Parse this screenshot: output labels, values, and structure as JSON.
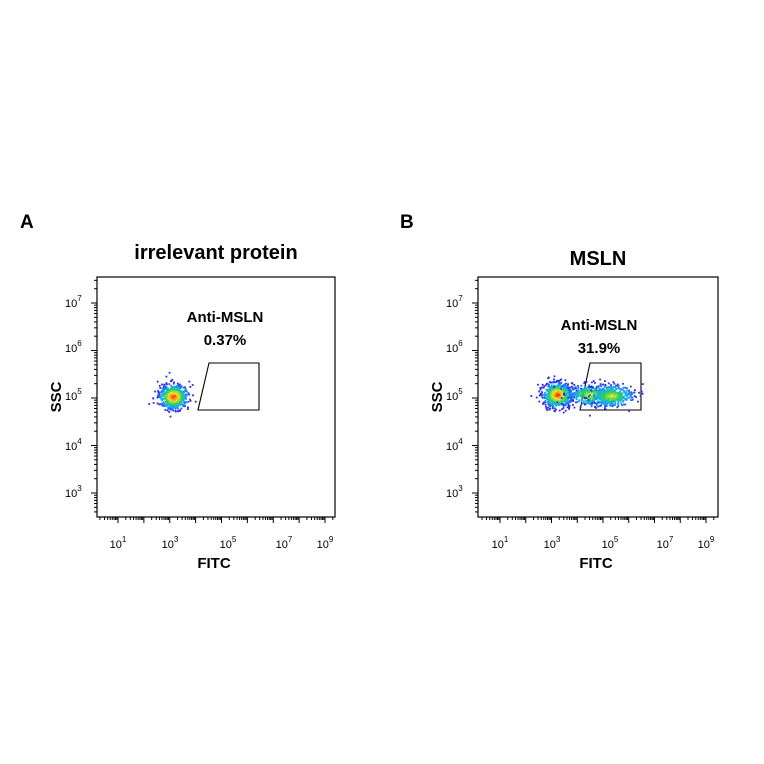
{
  "chart_data": [
    {
      "type": "scatter",
      "panel": "A",
      "title": "irrelevant protein",
      "xlabel": "FITC",
      "ylabel": "SSC",
      "x_scale": "log",
      "y_scale": "log",
      "x_ticks": [
        {
          "base": "10",
          "exp": "1",
          "value": 10
        },
        {
          "base": "10",
          "exp": "3",
          "value": 1000
        },
        {
          "base": "10",
          "exp": "5",
          "value": 100000
        },
        {
          "base": "10",
          "exp": "7",
          "value": 10000000
        },
        {
          "base": "10",
          "exp": "9",
          "value": 1000000000
        }
      ],
      "y_ticks": [
        {
          "base": "10",
          "exp": "3",
          "value": 1000
        },
        {
          "base": "10",
          "exp": "4",
          "value": 10000
        },
        {
          "base": "10",
          "exp": "5",
          "value": 100000
        },
        {
          "base": "10",
          "exp": "6",
          "value": 1000000
        },
        {
          "base": "10",
          "exp": "7",
          "value": 10000000
        }
      ],
      "gate": {
        "label": "Anti-MSLN",
        "percent": "0.37%"
      },
      "populations": [
        {
          "x": 1300,
          "y": 110000,
          "density": "high"
        }
      ]
    },
    {
      "type": "scatter",
      "panel": "B",
      "title": "MSLN",
      "xlabel": "FITC",
      "ylabel": "SSC",
      "x_scale": "log",
      "y_scale": "log",
      "x_ticks": [
        {
          "base": "10",
          "exp": "1",
          "value": 10
        },
        {
          "base": "10",
          "exp": "3",
          "value": 1000
        },
        {
          "base": "10",
          "exp": "5",
          "value": 100000
        },
        {
          "base": "10",
          "exp": "7",
          "value": 10000000
        },
        {
          "base": "10",
          "exp": "9",
          "value": 1000000000
        }
      ],
      "y_ticks": [
        {
          "base": "10",
          "exp": "3",
          "value": 1000
        },
        {
          "base": "10",
          "exp": "4",
          "value": 10000
        },
        {
          "base": "10",
          "exp": "5",
          "value": 100000
        },
        {
          "base": "10",
          "exp": "6",
          "value": 1000000
        },
        {
          "base": "10",
          "exp": "7",
          "value": 10000000
        }
      ],
      "gate": {
        "label": "Anti-MSLN",
        "percent": "31.9%"
      },
      "populations": [
        {
          "x": 1600,
          "y": 120000,
          "density": "high"
        },
        {
          "x": 30000,
          "y": 120000,
          "density": "medium"
        },
        {
          "x": 200000,
          "y": 115000,
          "density": "medium"
        }
      ]
    }
  ]
}
